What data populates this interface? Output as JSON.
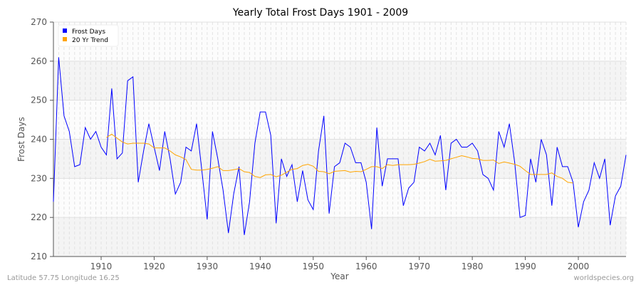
{
  "chart_data": {
    "type": "line",
    "title": "Yearly Total Frost Days 1901 - 2009",
    "xlabel": "Year",
    "ylabel": "Frost Days",
    "xlim": [
      1901,
      2009
    ],
    "ylim": [
      210,
      270
    ],
    "x_ticks": [
      1910,
      1920,
      1930,
      1940,
      1950,
      1960,
      1970,
      1980,
      1990,
      2000
    ],
    "y_ticks": [
      210,
      220,
      230,
      240,
      250,
      260,
      270
    ],
    "grid": true,
    "legend_placement": "top-left",
    "series": [
      {
        "name": "Frost Days",
        "color": "#0000ff",
        "start_year": 1901,
        "values": [
          224,
          261,
          246,
          242,
          233,
          233.5,
          243,
          240,
          242,
          238,
          236,
          253,
          235,
          236.5,
          255,
          256,
          229,
          237,
          244,
          238,
          232,
          242,
          235,
          226,
          229,
          238,
          237,
          244,
          232,
          219.5,
          242,
          235,
          227,
          216,
          226,
          233,
          215.5,
          224,
          239,
          247,
          247,
          241,
          218.5,
          235,
          230.5,
          233.5,
          224,
          232,
          224.5,
          222,
          237,
          246,
          221,
          233,
          234,
          239,
          238,
          234,
          234,
          229,
          217,
          243,
          228,
          235,
          235,
          235,
          223,
          227.5,
          229,
          238,
          237,
          239,
          236,
          241,
          227,
          239,
          240,
          238,
          238,
          239,
          237,
          231,
          230,
          227,
          242,
          238,
          244,
          234,
          220,
          220.5,
          235,
          229,
          240,
          236,
          223,
          238,
          233,
          233,
          229,
          217.5,
          224,
          227,
          234,
          230,
          235,
          218,
          225.5,
          228,
          236
        ]
      },
      {
        "name": "20 Yr Trend",
        "color": "#ffa500",
        "start_year": 1911,
        "values": [
          240.5,
          241.3,
          240.3,
          239.3,
          238.8,
          239,
          239,
          239,
          238.8,
          237.8,
          237.8,
          237.8,
          237,
          236,
          235.5,
          234.8,
          232.3,
          232.1,
          232.1,
          232.3,
          232.6,
          233,
          232,
          232,
          232.2,
          232.5,
          231.7,
          231.5,
          230.5,
          230.2,
          230.9,
          231,
          230.4,
          230.8,
          231.6,
          232.3,
          232.5,
          233.3,
          233.6,
          233.1,
          231.8,
          231.7,
          231.2,
          231.8,
          231.9,
          232,
          231.6,
          231.8,
          231.7,
          232.3,
          233,
          233,
          232.5,
          233.5,
          233.3,
          233.5,
          233.5,
          233.5,
          233.6,
          233.9,
          234.3,
          234.9,
          234.4,
          234.5,
          234.6,
          235,
          235.4,
          235.8,
          235.5,
          235.1,
          235,
          234.6,
          234.6,
          234.7,
          233.8,
          234.2,
          233.9,
          233.6,
          233.1,
          232,
          231,
          231,
          231,
          231,
          231.4,
          230.5,
          230,
          229,
          228.8
        ]
      }
    ]
  },
  "footer": {
    "location": "Latitude 57.75 Longitude 16.25",
    "credit": "worldspecies.org"
  }
}
